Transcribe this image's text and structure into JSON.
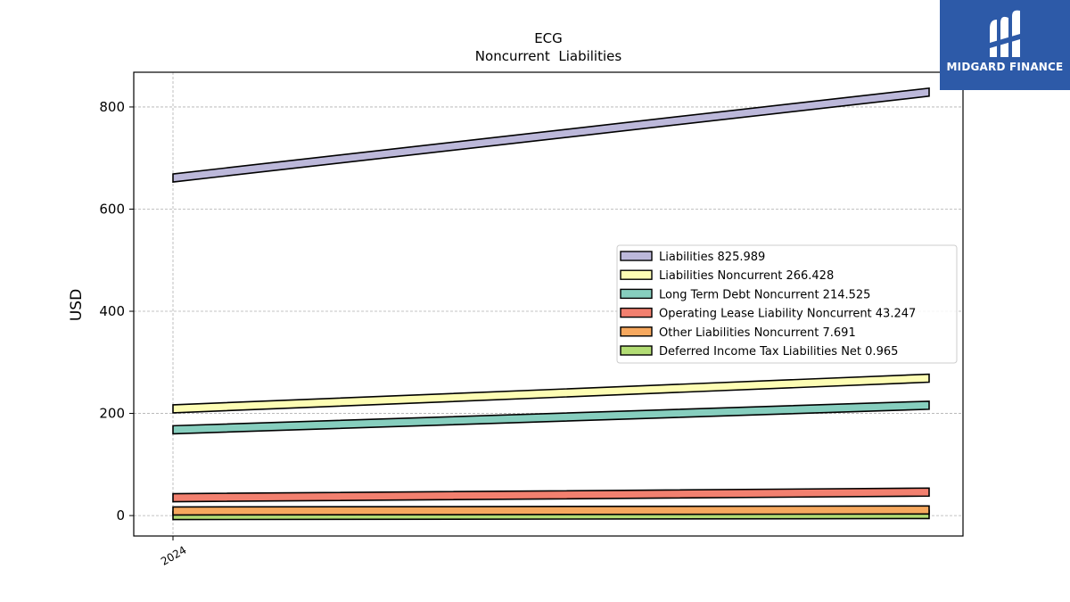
{
  "brand": {
    "name": "MIDGARD FINANCE",
    "color": "#2d5aa8"
  },
  "chart_data": {
    "type": "line",
    "title": "ECG",
    "subtitle": "Noncurrent  Liabilities",
    "xlabel": "",
    "ylabel": "USD",
    "x": [
      "2024"
    ],
    "x_tick_labels": [
      "2024"
    ],
    "ylim": [
      -40,
      868
    ],
    "y_ticks": [
      0,
      200,
      400,
      600,
      800
    ],
    "grid": true,
    "legend_position": "center-right",
    "series": [
      {
        "name": "Liabilities  825.989",
        "color": "#bcb8da",
        "start": 661,
        "end": 829
      },
      {
        "name": "Liabilities Noncurrent  266.428",
        "color": "#fdfdb4",
        "start": 209,
        "end": 269
      },
      {
        "name": "Long Term Debt Noncurrent  214.525",
        "color": "#86cebe",
        "start": 168,
        "end": 216
      },
      {
        "name": "Operating Lease Liability Noncurrent  43.247",
        "color": "#f2806f",
        "start": 35,
        "end": 46
      },
      {
        "name": "Other Liabilities Noncurrent  7.691",
        "color": "#f6a85e",
        "start": 9,
        "end": 11
      },
      {
        "name": "Deferred Income Tax Liabilities Net  0.965",
        "color": "#b2dc74",
        "start": 0,
        "end": 2
      }
    ]
  }
}
